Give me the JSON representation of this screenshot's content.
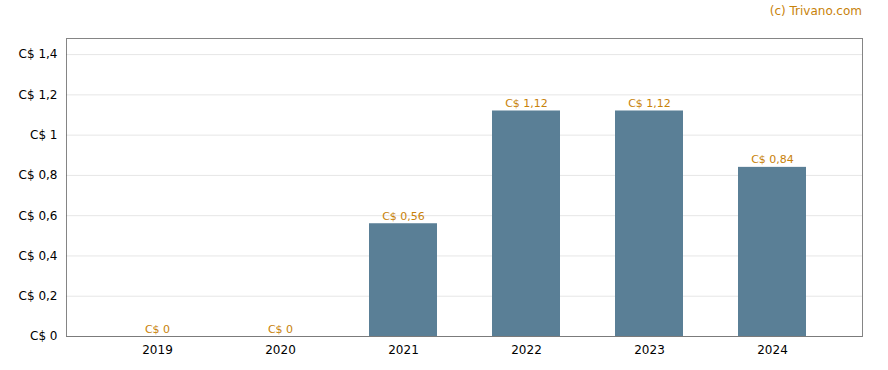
{
  "chart_data": {
    "type": "bar",
    "categories": [
      "2019",
      "2020",
      "2021",
      "2022",
      "2023",
      "2024"
    ],
    "values": [
      0,
      0,
      0.56,
      1.12,
      1.12,
      0.84
    ],
    "value_labels": [
      "C$ 0",
      "C$ 0",
      "C$ 0,56",
      "C$ 1,12",
      "C$ 1,12",
      "C$ 0,84"
    ],
    "color": "#5a7f96",
    "ylim": [
      0,
      1.48
    ],
    "yticks": [
      {
        "value": 0,
        "label": "C$ 0"
      },
      {
        "value": 0.2,
        "label": "C$ 0,2"
      },
      {
        "value": 0.4,
        "label": "C$ 0,4"
      },
      {
        "value": 0.6,
        "label": "C$ 0,6"
      },
      {
        "value": 0.8,
        "label": "C$ 0,8"
      },
      {
        "value": 1.0,
        "label": "C$ 1"
      },
      {
        "value": 1.2,
        "label": "C$ 1,2"
      },
      {
        "value": 1.4,
        "label": "C$ 1,4"
      }
    ],
    "grid": true,
    "data_labels": true,
    "annotations": [
      "(c) Trivano.com"
    ]
  }
}
